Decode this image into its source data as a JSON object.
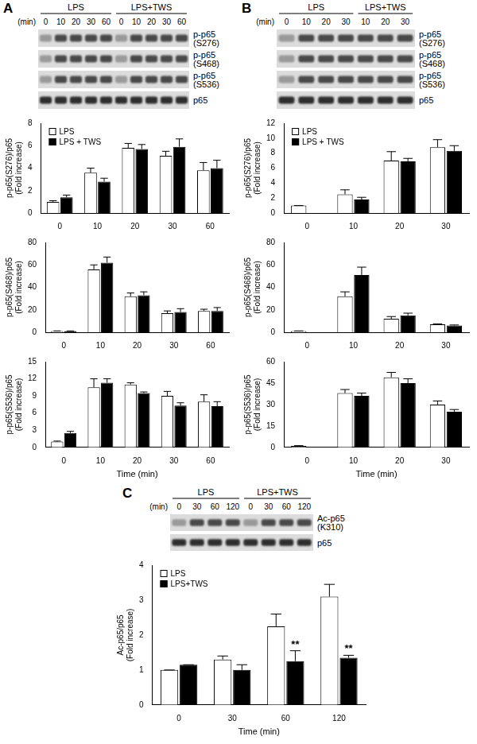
{
  "chart_data": [
    {
      "type": "bar",
      "categories": [
        "0",
        "10",
        "20",
        "30",
        "60"
      ],
      "y_label": [
        "p-p65(S276)/p65",
        "(Fold increase)"
      ],
      "series": [
        {
          "name": "LPS",
          "color": "#ffffff",
          "values": [
            1.0,
            3.6,
            5.8,
            5.1,
            3.8
          ],
          "errors": [
            0.1,
            0.4,
            0.4,
            0.4,
            0.7
          ]
        },
        {
          "name": "LPS + TWS",
          "color": "#000000",
          "values": [
            1.4,
            2.8,
            5.7,
            5.9,
            4.0
          ],
          "errors": [
            0.2,
            0.3,
            0.4,
            0.7,
            0.7
          ]
        }
      ],
      "ylim": [
        0,
        8
      ],
      "yticks": [
        0,
        2,
        4,
        6,
        8
      ],
      "grid": false,
      "legend": "top-left"
    },
    {
      "type": "bar",
      "categories": [
        "0",
        "10",
        "20",
        "30",
        "60"
      ],
      "y_label": [
        "p-p65(S468)/p65",
        "(Fold increase)"
      ],
      "series": [
        {
          "name": "LPS",
          "color": "#ffffff",
          "values": [
            1,
            56,
            32,
            17,
            19
          ],
          "errors": [
            0.2,
            4,
            3,
            2,
            1.5
          ]
        },
        {
          "name": "LPS + TWS",
          "color": "#000000",
          "values": [
            1,
            62,
            33,
            18,
            19
          ],
          "errors": [
            0.2,
            5,
            3,
            3,
            3
          ]
        }
      ],
      "ylim": [
        0,
        80
      ],
      "yticks": [
        0,
        20,
        40,
        60,
        80
      ],
      "grid": false
    },
    {
      "type": "bar",
      "categories": [
        "0",
        "10",
        "20",
        "30",
        "60"
      ],
      "x_label": "Time (min)",
      "y_label": [
        "p-p65(S536)/p65",
        "(Fold increase)"
      ],
      "series": [
        {
          "name": "LPS",
          "color": "#ffffff",
          "values": [
            1.0,
            10.5,
            11.0,
            9.0,
            8.0
          ],
          "errors": [
            0.1,
            1.5,
            0.3,
            0.8,
            1.2
          ]
        },
        {
          "name": "LPS + TWS",
          "color": "#000000",
          "values": [
            2.5,
            11.3,
            9.5,
            7.3,
            7.2
          ],
          "errors": [
            0.3,
            0.7,
            0.2,
            0.5,
            0.8
          ]
        }
      ],
      "ylim": [
        0,
        15
      ],
      "yticks": [
        0,
        3,
        6,
        9,
        12,
        15
      ],
      "grid": false
    },
    {
      "type": "bar",
      "categories": [
        "0",
        "10",
        "20",
        "30"
      ],
      "y_label": [
        "p-p65(S276)/p65",
        "(Fold increase)"
      ],
      "series": [
        {
          "name": "LPS",
          "color": "#ffffff",
          "values": [
            1.0,
            2.5,
            7.0,
            8.8
          ],
          "errors": [
            0,
            0.6,
            1.2,
            1.0
          ]
        },
        {
          "name": "LPS + TWS",
          "color": "#000000",
          "values": [
            null,
            1.8,
            6.9,
            8.3
          ],
          "errors": [
            null,
            0.3,
            0.4,
            0.7
          ]
        }
      ],
      "ylim": [
        0,
        12
      ],
      "yticks": [
        0,
        2,
        4,
        6,
        8,
        10,
        12
      ],
      "grid": false,
      "legend": "top-left"
    },
    {
      "type": "bar",
      "categories": [
        "0",
        "10",
        "20",
        "30"
      ],
      "y_label": [
        "p-p65(S468)/p65",
        "(Fold increase)"
      ],
      "series": [
        {
          "name": "LPS",
          "color": "#ffffff",
          "values": [
            1,
            32,
            12,
            7
          ],
          "errors": [
            0.2,
            4,
            2,
            0.5
          ]
        },
        {
          "name": "LPS + TWS",
          "color": "#000000",
          "values": [
            null,
            51,
            15,
            6
          ],
          "errors": [
            null,
            7,
            2,
            0.5
          ]
        }
      ],
      "ylim": [
        0,
        80
      ],
      "yticks": [
        0,
        20,
        40,
        60,
        80
      ],
      "grid": false
    },
    {
      "type": "bar",
      "categories": [
        "0",
        "10",
        "20",
        "30"
      ],
      "x_label": "Time (min)",
      "y_label": [
        "p-p65(S536)/p65",
        "(Fold increase)"
      ],
      "series": [
        {
          "name": "LPS",
          "color": "#ffffff",
          "values": [
            1,
            38,
            49,
            30
          ],
          "errors": [
            0.2,
            2.5,
            3.5,
            2.5
          ]
        },
        {
          "name": "LPS + TWS",
          "color": "#000000",
          "values": [
            null,
            36,
            45,
            25
          ],
          "errors": [
            null,
            2,
            3,
            1.5
          ]
        }
      ],
      "ylim": [
        0,
        60
      ],
      "yticks": [
        0,
        15,
        30,
        45,
        60
      ],
      "grid": false
    },
    {
      "type": "bar",
      "categories": [
        "0",
        "30",
        "60",
        "120"
      ],
      "x_label": "Time (min)",
      "y_label": [
        "Ac-p65/p65",
        "(Fold increase)"
      ],
      "series": [
        {
          "name": "LPS",
          "color": "#ffffff",
          "values": [
            1.0,
            1.3,
            2.25,
            3.1
          ],
          "errors": [
            0,
            0.1,
            0.35,
            0.35
          ]
        },
        {
          "name": "LPS+TWS",
          "color": "#000000",
          "values": [
            1.15,
            1.0,
            1.25,
            1.35
          ],
          "errors": [
            0,
            0.15,
            0.3,
            0.07
          ]
        }
      ],
      "annotations": [
        {
          "text": "**",
          "category": "60",
          "series": "LPS+TWS"
        },
        {
          "text": "**",
          "category": "120",
          "series": "LPS+TWS"
        }
      ],
      "ylim": [
        0,
        4
      ],
      "yticks": [
        0,
        1,
        2,
        3,
        4
      ],
      "grid": false,
      "legend": "top-left"
    }
  ],
  "figure": {
    "panels": [
      {
        "label": "A",
        "blot": {
          "time_label": "(min)",
          "groups": [
            {
              "name": "LPS",
              "times": [
                "0",
                "10",
                "20",
                "30",
                "60"
              ]
            },
            {
              "name": "LPS+TWS",
              "times": [
                "0",
                "10",
                "20",
                "30",
                "60"
              ]
            }
          ],
          "bands": [
            [
              "p-p65",
              "(S276)"
            ],
            [
              "p-p65",
              "(S468)"
            ],
            [
              "p-p65",
              "(S536)"
            ],
            [
              "p65"
            ]
          ]
        }
      },
      {
        "label": "B",
        "blot": {
          "time_label": "(min)",
          "groups": [
            {
              "name": "LPS",
              "times": [
                "0",
                "10",
                "20",
                "30"
              ]
            },
            {
              "name": "LPS+TWS",
              "times": [
                "10",
                "20",
                "30"
              ]
            }
          ],
          "bands": [
            [
              "p-p65",
              "(S276)"
            ],
            [
              "p-p65",
              "(S468)"
            ],
            [
              "p-p65",
              "(S536)"
            ],
            [
              "p65"
            ]
          ]
        }
      },
      {
        "label": "C",
        "blot": {
          "time_label": "(min)",
          "groups": [
            {
              "name": "LPS",
              "times": [
                "0",
                "30",
                "60",
                "120"
              ]
            },
            {
              "name": "LPS+TWS",
              "times": [
                "0",
                "30",
                "60",
                "120"
              ]
            }
          ],
          "bands": [
            [
              "Ac-p65",
              "(K310)"
            ],
            [
              "p65"
            ]
          ]
        }
      }
    ]
  }
}
